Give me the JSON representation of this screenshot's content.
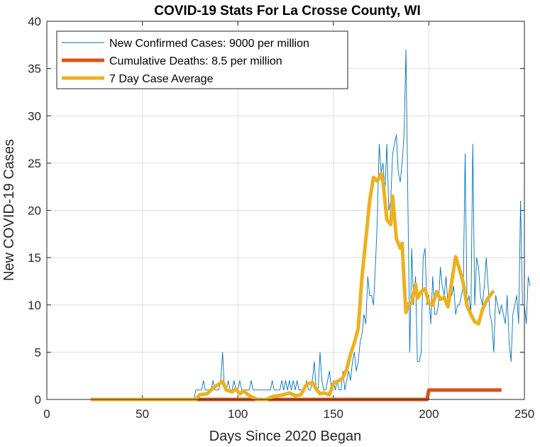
{
  "chart_data": {
    "type": "line",
    "title": "COVID-19 Stats For La Crosse County, WI",
    "xlabel": "Days Since 2020 Began",
    "ylabel": "New COVID-19 Cases",
    "xlim": [
      0,
      250
    ],
    "ylim": [
      0,
      40
    ],
    "xticks": [
      0,
      50,
      100,
      150,
      200,
      250
    ],
    "yticks": [
      0,
      5,
      10,
      15,
      20,
      25,
      30,
      35,
      40
    ],
    "grid": true,
    "legend_position": "top-left",
    "series": [
      {
        "name": "New Confirmed Cases: 9000 per million",
        "color": "#0072BD",
        "style": "thin",
        "x_start": 78,
        "values": [
          1,
          1,
          1,
          1,
          2,
          1,
          1,
          1,
          1,
          2,
          1,
          1,
          1,
          2,
          5,
          1,
          1,
          2,
          1,
          1,
          2,
          1,
          1,
          2,
          1,
          1,
          1,
          1,
          1,
          2,
          1,
          1,
          1,
          1,
          1,
          1,
          1,
          1,
          1,
          1,
          2,
          1,
          1,
          1,
          1,
          2,
          1,
          2,
          1,
          2,
          1,
          2,
          1,
          2,
          1,
          1,
          1,
          1,
          2,
          1,
          1,
          2,
          4,
          1,
          1,
          5,
          2,
          1,
          1,
          2,
          3,
          1,
          2,
          1,
          2,
          1,
          1,
          3,
          1,
          2,
          3,
          2,
          4,
          5,
          3,
          4,
          6,
          7,
          9,
          8,
          13,
          11,
          11,
          10,
          14,
          19,
          27,
          24,
          25,
          22,
          27,
          20,
          21,
          26,
          27,
          28,
          24,
          23,
          25,
          28,
          37,
          21,
          5,
          16,
          10,
          13,
          4,
          4,
          5,
          15,
          16,
          10,
          11,
          8,
          13,
          9,
          9,
          10,
          14,
          12,
          11,
          13,
          10,
          12,
          11,
          12,
          9,
          10,
          10,
          11,
          12,
          26,
          10,
          11,
          9,
          27,
          10,
          15,
          14,
          11,
          10,
          12,
          15,
          12,
          9,
          8,
          5,
          11,
          10,
          9,
          10,
          9,
          8,
          11,
          6,
          4,
          9,
          10,
          11,
          8,
          21,
          10,
          10,
          8,
          13,
          12
        ],
        "note": "daily values from day 78 onward (zeros before)"
      },
      {
        "name": "Cumulative Deaths: 8.5 per million",
        "color": "#D95319",
        "style": "thick",
        "points": [
          [
            23,
            0
          ],
          [
            199,
            0
          ],
          [
            200,
            1
          ],
          [
            238,
            1
          ]
        ]
      },
      {
        "name": "7 Day Case Average",
        "color": "#EDB120",
        "style": "thick",
        "points": [
          [
            23,
            0
          ],
          [
            78,
            0
          ],
          [
            80,
            0.5
          ],
          [
            84,
            0.6
          ],
          [
            87,
            1.2
          ],
          [
            92,
            1.9
          ],
          [
            94,
            1.0
          ],
          [
            97,
            0.8
          ],
          [
            99,
            1.1
          ],
          [
            101,
            0.6
          ],
          [
            103,
            0.9
          ],
          [
            106,
            0.4
          ],
          [
            108,
            0.2
          ],
          [
            110,
            0
          ],
          [
            115,
            0
          ],
          [
            118,
            0.3
          ],
          [
            121,
            0.4
          ],
          [
            124,
            0.5
          ],
          [
            127,
            0.7
          ],
          [
            130,
            0.4
          ],
          [
            133,
            0.5
          ],
          [
            136,
            1.6
          ],
          [
            139,
            1.8
          ],
          [
            141,
            1.1
          ],
          [
            143,
            0.6
          ],
          [
            145,
            0.7
          ],
          [
            148,
            0.5
          ],
          [
            150,
            1.7
          ],
          [
            153,
            2.0
          ],
          [
            155,
            2.3
          ],
          [
            157,
            3.2
          ],
          [
            159,
            4.8
          ],
          [
            161,
            6.0
          ],
          [
            163,
            7.5
          ],
          [
            165,
            13.0
          ],
          [
            167,
            17.0
          ],
          [
            169,
            21.0
          ],
          [
            171,
            23.5
          ],
          [
            173,
            23.1
          ],
          [
            175,
            23.9
          ],
          [
            176,
            23.0
          ],
          [
            178,
            19.0
          ],
          [
            180,
            18.5
          ],
          [
            181,
            21.5
          ],
          [
            183,
            17.0
          ],
          [
            185,
            16.0
          ],
          [
            186,
            16.5
          ],
          [
            187,
            12.5
          ],
          [
            188,
            9.2
          ],
          [
            189,
            10.1
          ],
          [
            191,
            10.2
          ],
          [
            193,
            12.2
          ],
          [
            194,
            10.7
          ],
          [
            196,
            11.4
          ],
          [
            198,
            11.7
          ],
          [
            200,
            10.2
          ],
          [
            202,
            10.0
          ],
          [
            204,
            11.4
          ],
          [
            206,
            10.6
          ],
          [
            208,
            10.8
          ],
          [
            210,
            9.8
          ],
          [
            212,
            12.5
          ],
          [
            214,
            15.1
          ],
          [
            216,
            13.8
          ],
          [
            218,
            12.3
          ],
          [
            220,
            9.9
          ],
          [
            222,
            9.0
          ],
          [
            224,
            8.2
          ],
          [
            226,
            8.0
          ],
          [
            228,
            9.5
          ],
          [
            230,
            10.4
          ],
          [
            232,
            11.0
          ],
          [
            234,
            11.5
          ]
        ]
      }
    ]
  }
}
